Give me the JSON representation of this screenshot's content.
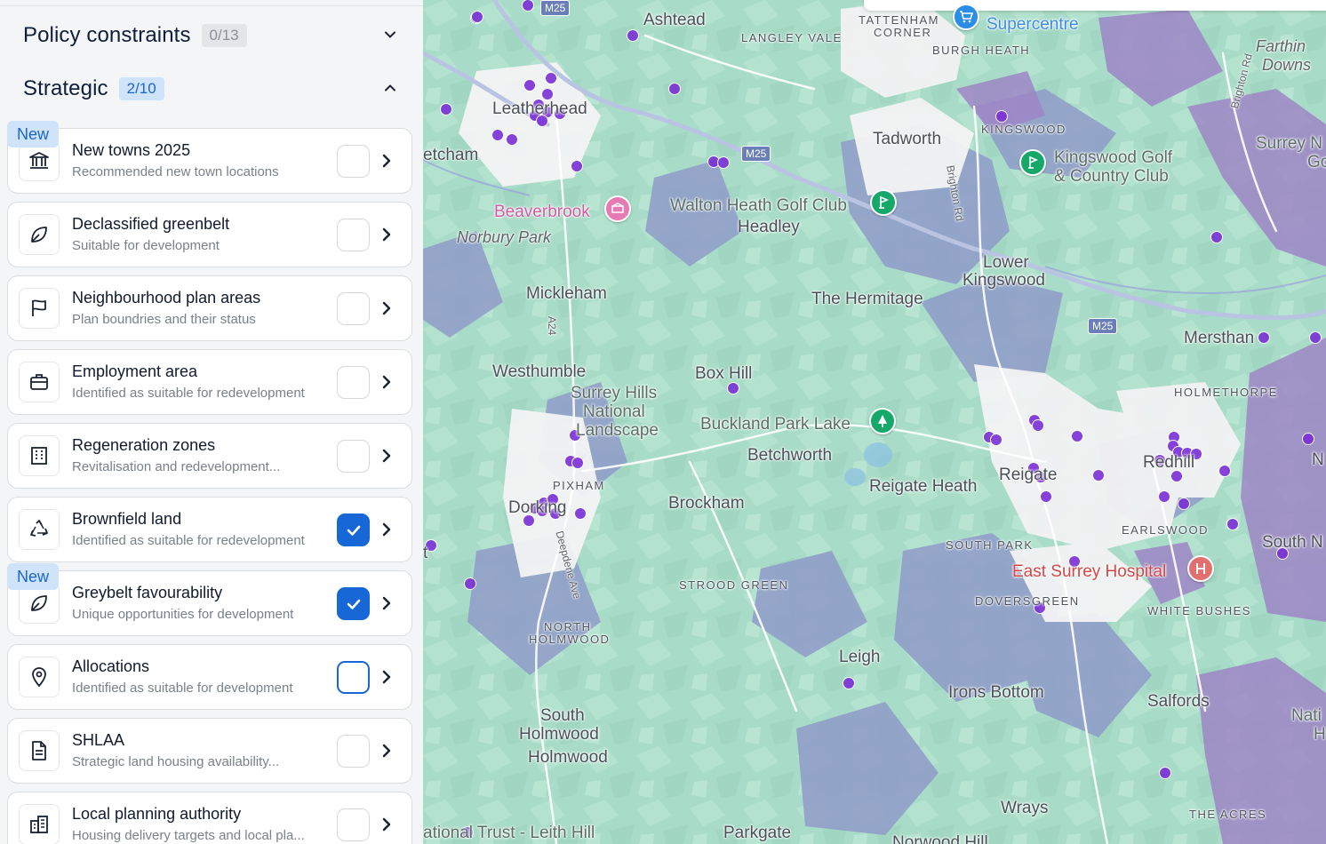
{
  "sidebar": {
    "policy": {
      "title": "Policy constraints",
      "count": "0/13"
    },
    "strategic": {
      "title": "Strategic",
      "count": "2/10"
    },
    "new_label": "New",
    "cards": [
      {
        "title": "New towns 2025",
        "subtitle": "Recommended new town locations",
        "icon": "government-building-icon",
        "checked": false,
        "is_new": true
      },
      {
        "title": "Declassified greenbelt",
        "subtitle": "Suitable for development",
        "icon": "leaf-icon",
        "checked": false,
        "is_new": false
      },
      {
        "title": "Neighbourhood plan areas",
        "subtitle": "Plan boundries and their status",
        "icon": "flag-icon",
        "checked": false,
        "is_new": false
      },
      {
        "title": "Employment area",
        "subtitle": "Identified as suitable for redevelopment",
        "icon": "briefcase-icon",
        "checked": false,
        "is_new": false
      },
      {
        "title": "Regeneration zones",
        "subtitle": "Revitalisation and redevelopment...",
        "icon": "office-building-icon",
        "checked": false,
        "is_new": false
      },
      {
        "title": "Brownfield land",
        "subtitle": "Identified as suitable for redevelopment",
        "icon": "recycle-icon",
        "checked": true,
        "is_new": false
      },
      {
        "title": "Greybelt favourability",
        "subtitle": "Unique opportunities for development",
        "icon": "leaf-icon",
        "checked": true,
        "is_new": true
      },
      {
        "title": "Allocations",
        "subtitle": "Identified as suitable for development",
        "icon": "map-pin-icon",
        "checked": false,
        "focused": true,
        "is_new": false
      },
      {
        "title": "SHLAA",
        "subtitle": "Strategic land housing availability...",
        "icon": "document-icon",
        "checked": false,
        "is_new": false
      },
      {
        "title": "Local planning authority",
        "subtitle": "Housing delivery targets and local pla...",
        "icon": "city-building-icon",
        "checked": false,
        "is_new": false
      }
    ]
  },
  "map": {
    "labels": {
      "ashtead": "Ashtead",
      "leatherhead": "Leatherhead",
      "fetcham": "etcham",
      "langley_vale": "LANGLEY VALE",
      "tattenham": "TATTENHAM",
      "corner": "CORNER",
      "burgh_heath": "BURGH HEATH",
      "supercentre": "Supercentre",
      "farthing": "Farthin",
      "downs": "Downs",
      "kingswood": "KINGSWOOD",
      "tadworth": "Tadworth",
      "kingswood_golf": "Kingswood Golf",
      "country_club": "& Country Club",
      "surrey_n": "Surrey N",
      "go": "Go",
      "beaverbrook": "Beaverbrook",
      "norbury_park": "Norbury Park",
      "walton_heath": "Walton Heath Golf Club",
      "headley": "Headley",
      "lower": "Lower",
      "kingswood2": "Kingswood",
      "mickleham": "Mickleham",
      "the_hermitage": "The Hermitage",
      "mersham": "Mersthan",
      "westhumble": "Westhumble",
      "box_hill": "Box Hill",
      "holmethorpe": "HOLMETHORPE",
      "surrey_hills": "Surrey Hills",
      "national": "National",
      "landscape": "Landscape",
      "buckland": "Buckland Park Lake",
      "betchworth": "Betchworth",
      "reigate": "Reigate",
      "reigate_heath": "Reigate Heath",
      "redhill": "Redhill",
      "n_edge": "N",
      "pixham": "PIXHAM",
      "dorking": "Dorking",
      "brockham": "Brockham",
      "south_park": "SOUTH PARK",
      "earlswood": "EARLSWOOD",
      "south_n": "South N",
      "east_surrey": "East Surrey Hospital",
      "strood_green": "STROOD GREEN",
      "doversgreen": "DOVERSGREEN",
      "white_bushes": "WHITE BUSHES",
      "north": "NORTH",
      "holmwood_upper": "HOLMWOOD",
      "leigh": "Leigh",
      "irons_bottom": "Irons Bottom",
      "salfords": "Salfords",
      "nati": "Nati",
      "h": "H",
      "south": "South",
      "holmwood1": "Holmwood",
      "holmwood2": "Holmwood",
      "wrays": "Wrays",
      "the_acres": "THE ACRES",
      "national_trust": "ational Trust - Leith Hill",
      "parkgate": "Parkgate",
      "norwood_hill": "Norwood Hill",
      "brighton_rd": "Brighton Rd",
      "brighton_rd2": "Brighton Rd",
      "a24": "A24",
      "deepdene": "Deepdene Ave",
      "t_edge": "t"
    },
    "shields": {
      "m25_top": "M25",
      "m25_mid": "M25",
      "m25_right": "M25"
    },
    "colors": {
      "base": "#a9dcc8",
      "greybelt": "#8f9bc8",
      "urban": "#f3f3f4",
      "brownfield": "#7a2fd6"
    }
  }
}
